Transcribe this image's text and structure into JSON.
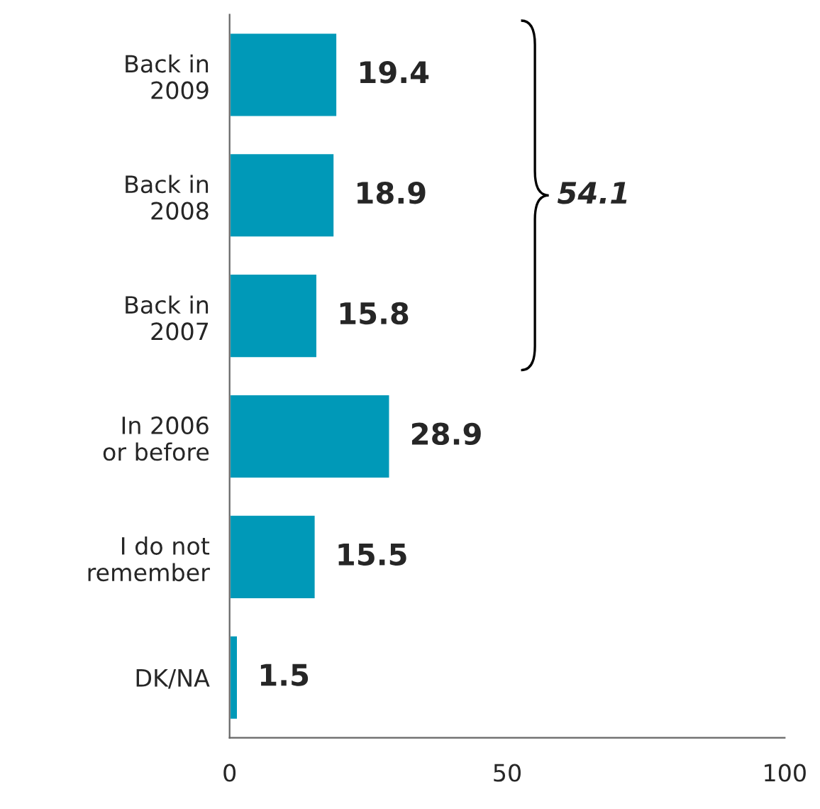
{
  "chart_data": {
    "type": "bar",
    "orientation": "horizontal",
    "categories": [
      "Back in\n2009",
      "Back in\n2008",
      "Back in\n2007",
      "In 2006\nor before",
      "I do not\nremember",
      "DK/NA"
    ],
    "values": [
      19.4,
      18.9,
      15.8,
      28.9,
      15.5,
      1.5
    ],
    "color": "#0099b8",
    "xlim": [
      0,
      100
    ],
    "xticks": [
      0,
      50,
      100
    ],
    "data_labels": true,
    "grid": false,
    "legend": false,
    "annotations": [
      "54.1"
    ]
  }
}
